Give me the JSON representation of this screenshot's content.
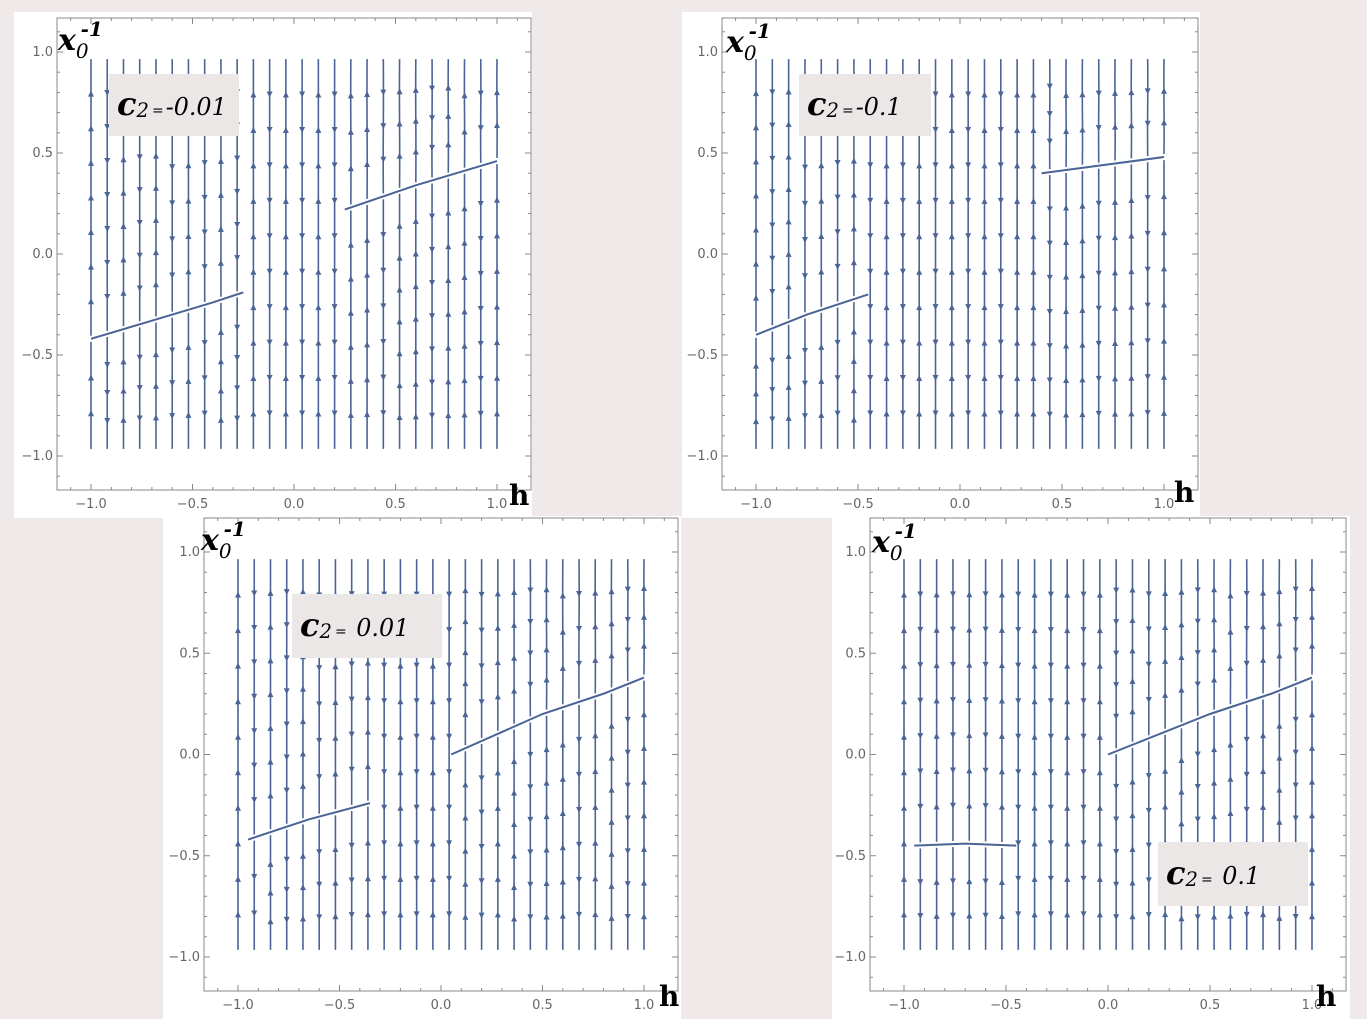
{
  "chart_data": [
    {
      "type": "streamplot",
      "annotation": {
        "prefix": "c",
        "sub": "2",
        "eq": "=",
        "value": "-0.01"
      },
      "xlabel": "h",
      "ylabel": {
        "base": "x",
        "sub": "0",
        "sup": "-1"
      },
      "xlim": [
        -1.0,
        1.0
      ],
      "ylim": [
        -1.0,
        1.0
      ],
      "xticks": [
        "−1.0",
        "−0.5",
        "0.0",
        "0.5",
        "1.0"
      ],
      "yticks": [
        "−1.0",
        "−0.5",
        "0.0",
        "0.5",
        "1.0"
      ],
      "stream_color": "#4a6496",
      "attracting_curves": [
        [
          [
            -1.0,
            -0.42
          ],
          [
            -0.7,
            -0.33
          ],
          [
            -0.4,
            -0.24
          ],
          [
            -0.25,
            -0.19
          ]
        ],
        [
          [
            0.25,
            0.22
          ],
          [
            0.6,
            0.34
          ],
          [
            1.0,
            0.46
          ]
        ]
      ]
    },
    {
      "type": "streamplot",
      "annotation": {
        "prefix": "c",
        "sub": "2",
        "eq": "=",
        "value": "-0.1"
      },
      "xlabel": "h",
      "ylabel": {
        "base": "x",
        "sub": "0",
        "sup": "-1"
      },
      "xlim": [
        -1.0,
        1.0
      ],
      "ylim": [
        -1.0,
        1.0
      ],
      "xticks": [
        "−1.0",
        "−0.5",
        "0.0",
        "0.5",
        "1.0"
      ],
      "yticks": [
        "−1.0",
        "−0.5",
        "0.0",
        "0.5",
        "1.0"
      ],
      "stream_color": "#4a6496",
      "attracting_curves": [
        [
          [
            -1.0,
            -0.4
          ],
          [
            -0.75,
            -0.3
          ],
          [
            -0.45,
            -0.2
          ]
        ],
        [
          [
            0.4,
            0.4
          ],
          [
            0.7,
            0.44
          ],
          [
            1.0,
            0.48
          ]
        ]
      ]
    },
    {
      "type": "streamplot",
      "annotation": {
        "prefix": "c",
        "sub": "2",
        "eq": "=",
        "value": " 0.01"
      },
      "xlabel": "h",
      "ylabel": {
        "base": "x",
        "sub": "0",
        "sup": "-1"
      },
      "xlim": [
        -1.0,
        1.0
      ],
      "ylim": [
        -1.0,
        1.0
      ],
      "xticks": [
        "−1.0",
        "−0.5",
        "0.0",
        "0.5",
        "1.0"
      ],
      "yticks": [
        "−1.0",
        "−0.5",
        "0.0",
        "0.5",
        "1.0"
      ],
      "stream_color": "#4a6496",
      "attracting_curves": [
        [
          [
            -0.95,
            -0.42
          ],
          [
            -0.65,
            -0.32
          ],
          [
            -0.35,
            -0.24
          ]
        ],
        [
          [
            0.05,
            0.0
          ],
          [
            0.5,
            0.2
          ],
          [
            0.8,
            0.3
          ],
          [
            1.0,
            0.38
          ]
        ]
      ]
    },
    {
      "type": "streamplot",
      "annotation": {
        "prefix": "c",
        "sub": "2",
        "eq": "=",
        "value": " 0.1"
      },
      "xlabel": "h",
      "ylabel": {
        "base": "x",
        "sub": "0",
        "sup": "-1"
      },
      "xlim": [
        -1.0,
        1.0
      ],
      "ylim": [
        -1.0,
        1.0
      ],
      "xticks": [
        "−1.0",
        "−0.5",
        "0.0",
        "0.5",
        "1.0"
      ],
      "yticks": [
        "−1.0",
        "−0.5",
        "0.0",
        "0.5",
        "1.0"
      ],
      "stream_color": "#4a6496",
      "attracting_curves": [
        [
          [
            -0.95,
            -0.45
          ],
          [
            -0.7,
            -0.44
          ],
          [
            -0.45,
            -0.45
          ]
        ],
        [
          [
            0.0,
            0.0
          ],
          [
            0.5,
            0.2
          ],
          [
            0.8,
            0.3
          ],
          [
            1.0,
            0.38
          ]
        ]
      ]
    }
  ]
}
